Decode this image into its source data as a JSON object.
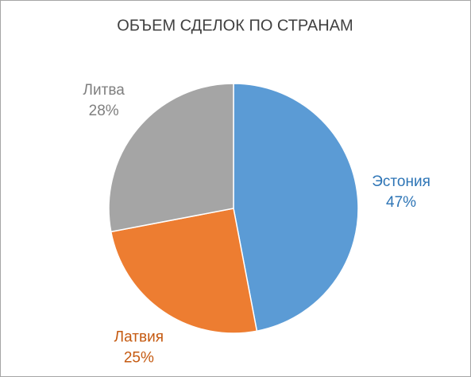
{
  "chart_data": {
    "type": "pie",
    "title": "ОБЪЕМ СДЕЛОК ПО СТРАНАМ",
    "categories": [
      "Эстония",
      "Латвия",
      "Литва"
    ],
    "values": [
      47,
      25,
      28
    ],
    "value_labels": [
      "47%",
      "25%",
      "28%"
    ],
    "colors": [
      "#5b9bd5",
      "#ed7d31",
      "#a5a5a5"
    ],
    "label_colors": [
      "#2e75b6",
      "#c55a11",
      "#7f7f7f"
    ]
  }
}
